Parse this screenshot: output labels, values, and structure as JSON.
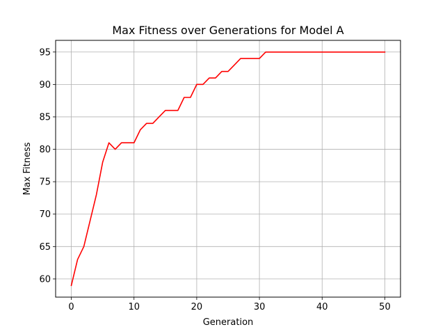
{
  "chart_data": {
    "type": "line",
    "title": "Max Fitness over Generations for Model A",
    "xlabel": "Generation",
    "ylabel": "Max Fitness",
    "xlim": [
      -2.5,
      52.5
    ],
    "ylim": [
      57.2,
      96.8
    ],
    "xticks": [
      0,
      10,
      20,
      30,
      40,
      50
    ],
    "yticks": [
      60,
      65,
      70,
      75,
      80,
      85,
      90,
      95
    ],
    "grid": true,
    "legend": "none",
    "series": [
      {
        "color": "#ff0000",
        "x": [
          0,
          1,
          2,
          3,
          4,
          5,
          6,
          7,
          8,
          9,
          10,
          11,
          12,
          13,
          14,
          15,
          16,
          17,
          18,
          19,
          20,
          21,
          22,
          23,
          24,
          25,
          26,
          27,
          28,
          29,
          30,
          31,
          32,
          33,
          34,
          35,
          36,
          37,
          38,
          39,
          40,
          41,
          42,
          43,
          44,
          45,
          46,
          47,
          48,
          49,
          50
        ],
        "values": [
          59,
          63,
          65,
          69,
          73,
          78,
          81,
          80,
          81,
          81,
          81,
          83,
          84,
          84,
          85,
          86,
          86,
          86,
          88,
          88,
          90,
          90,
          91,
          91,
          92,
          92,
          93,
          94,
          94,
          94,
          94,
          95,
          95,
          95,
          95,
          95,
          95,
          95,
          95,
          95,
          95,
          95,
          95,
          95,
          95,
          95,
          95,
          95,
          95,
          95,
          95
        ]
      }
    ]
  }
}
